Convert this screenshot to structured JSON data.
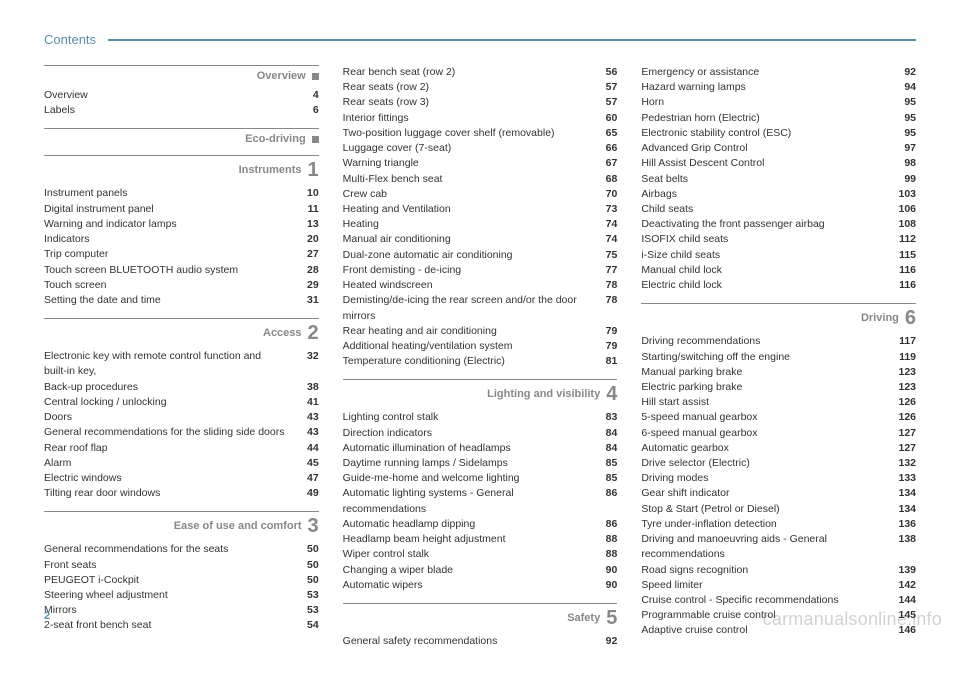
{
  "header": {
    "title": "Contents",
    "page_number": "2",
    "watermark": "carmanualsonline.info"
  },
  "colors": {
    "accent": "#5a8fa8",
    "muted": "#888888",
    "text": "#333333",
    "bg": "#ffffff"
  },
  "columns": [
    {
      "sections": [
        {
          "title": "Overview",
          "marker": "square",
          "entries": [
            {
              "label": "Overview",
              "page": "4"
            },
            {
              "label": "Labels",
              "page": "6"
            }
          ]
        },
        {
          "title": "Eco-driving",
          "marker": "square",
          "entries": []
        },
        {
          "title": "Instruments",
          "marker": "1",
          "entries": [
            {
              "label": "Instrument panels",
              "page": "10"
            },
            {
              "label": "Digital instrument panel",
              "page": "11"
            },
            {
              "label": "Warning and indicator lamps",
              "page": "13"
            },
            {
              "label": "Indicators",
              "page": "20"
            },
            {
              "label": "Trip computer",
              "page": "27"
            },
            {
              "label": "Touch screen BLUETOOTH audio system",
              "page": "28"
            },
            {
              "label": "Touch screen",
              "page": "29"
            },
            {
              "label": "Setting the date and time",
              "page": "31"
            }
          ]
        },
        {
          "title": "Access",
          "marker": "2",
          "entries": [
            {
              "label": "Electronic key with remote control function and built-in key,",
              "page": "32"
            },
            {
              "label": "Back-up procedures",
              "page": "38"
            },
            {
              "label": "Central locking / unlocking",
              "page": "41"
            },
            {
              "label": "Doors",
              "page": "43"
            },
            {
              "label": "General recommendations for the sliding side doors",
              "page": "43"
            },
            {
              "label": "Rear roof flap",
              "page": "44"
            },
            {
              "label": "Alarm",
              "page": "45"
            },
            {
              "label": "Electric windows",
              "page": "47"
            },
            {
              "label": "Tilting rear door windows",
              "page": "49"
            }
          ]
        },
        {
          "title": "Ease of use and comfort",
          "marker": "3",
          "entries": [
            {
              "label": "General recommendations for the seats",
              "page": "50"
            },
            {
              "label": "Front seats",
              "page": "50"
            },
            {
              "label": "PEUGEOT i-Cockpit",
              "page": "50"
            },
            {
              "label": "Steering wheel adjustment",
              "page": "53"
            },
            {
              "label": "Mirrors",
              "page": "53"
            },
            {
              "label": "2-seat front bench seat",
              "page": "54"
            }
          ]
        }
      ]
    },
    {
      "sections": [
        {
          "title": "",
          "marker": "",
          "notop": true,
          "entries": [
            {
              "label": "Rear bench seat (row 2)",
              "page": "56"
            },
            {
              "label": "Rear seats (row 2)",
              "page": "57"
            },
            {
              "label": "Rear seats (row 3)",
              "page": "57"
            },
            {
              "label": "Interior fittings",
              "page": "60"
            },
            {
              "label": "Two-position luggage cover shelf (removable)",
              "page": "65"
            },
            {
              "label": "Luggage cover (7-seat)",
              "page": "66"
            },
            {
              "label": "Warning triangle",
              "page": "67"
            },
            {
              "label": "Multi-Flex bench seat",
              "page": "68"
            },
            {
              "label": "Crew cab",
              "page": "70"
            },
            {
              "label": "Heating and Ventilation",
              "page": "73"
            },
            {
              "label": "Heating",
              "page": "74"
            },
            {
              "label": "Manual air conditioning",
              "page": "74"
            },
            {
              "label": "Dual-zone automatic air conditioning",
              "page": "75"
            },
            {
              "label": "Front demisting - de-icing",
              "page": "77"
            },
            {
              "label": "Heated windscreen",
              "page": "78"
            },
            {
              "label": "Demisting/de-icing the rear screen and/or the door mirrors",
              "page": "78"
            },
            {
              "label": "Rear heating and air conditioning",
              "page": "79"
            },
            {
              "label": "Additional heating/ventilation system",
              "page": "79"
            },
            {
              "label": "Temperature conditioning (Electric)",
              "page": "81"
            }
          ]
        },
        {
          "title": "Lighting and visibility",
          "marker": "4",
          "entries": [
            {
              "label": "Lighting control stalk",
              "page": "83"
            },
            {
              "label": "Direction indicators",
              "page": "84"
            },
            {
              "label": "Automatic illumination of headlamps",
              "page": "84"
            },
            {
              "label": "Daytime running lamps / Sidelamps",
              "page": "85"
            },
            {
              "label": "Guide-me-home and welcome lighting",
              "page": "85"
            },
            {
              "label": "Automatic lighting systems - General recommendations",
              "page": "86"
            },
            {
              "label": "Automatic headlamp dipping",
              "page": "86"
            },
            {
              "label": "Headlamp beam height adjustment",
              "page": "88"
            },
            {
              "label": "Wiper control stalk",
              "page": "88"
            },
            {
              "label": "Changing a wiper blade",
              "page": "90"
            },
            {
              "label": "Automatic wipers",
              "page": "90"
            }
          ]
        },
        {
          "title": "Safety",
          "marker": "5",
          "entries": [
            {
              "label": "General safety recommendations",
              "page": "92"
            }
          ]
        }
      ]
    },
    {
      "sections": [
        {
          "title": "",
          "marker": "",
          "notop": true,
          "entries": [
            {
              "label": "Emergency or assistance",
              "page": "92"
            },
            {
              "label": "Hazard warning lamps",
              "page": "94"
            },
            {
              "label": "Horn",
              "page": "95"
            },
            {
              "label": "Pedestrian horn (Electric)",
              "page": "95"
            },
            {
              "label": "Electronic stability control (ESC)",
              "page": "95"
            },
            {
              "label": "Advanced Grip Control",
              "page": "97"
            },
            {
              "label": "Hill Assist Descent Control",
              "page": "98"
            },
            {
              "label": "Seat belts",
              "page": "99"
            },
            {
              "label": "Airbags",
              "page": "103"
            },
            {
              "label": "Child seats",
              "page": "106"
            },
            {
              "label": "Deactivating the front passenger airbag",
              "page": "108"
            },
            {
              "label": "ISOFIX child seats",
              "page": "112"
            },
            {
              "label": "i-Size child seats",
              "page": "115"
            },
            {
              "label": "Manual child lock",
              "page": "116"
            },
            {
              "label": "Electric child lock",
              "page": "116"
            }
          ]
        },
        {
          "title": "Driving",
          "marker": "6",
          "entries": [
            {
              "label": "Driving recommendations",
              "page": "117"
            },
            {
              "label": "Starting/switching off the engine",
              "page": "119"
            },
            {
              "label": "Manual parking brake",
              "page": "123"
            },
            {
              "label": "Electric parking brake",
              "page": "123"
            },
            {
              "label": "Hill start assist",
              "page": "126"
            },
            {
              "label": "5-speed manual gearbox",
              "page": "126"
            },
            {
              "label": "6-speed manual gearbox",
              "page": "127"
            },
            {
              "label": "Automatic gearbox",
              "page": "127"
            },
            {
              "label": "Drive selector (Electric)",
              "page": "132"
            },
            {
              "label": "Driving modes",
              "page": "133"
            },
            {
              "label": "Gear shift indicator",
              "page": "134"
            },
            {
              "label": "Stop & Start (Petrol or Diesel)",
              "page": "134"
            },
            {
              "label": "Tyre under-inflation detection",
              "page": "136"
            },
            {
              "label": "Driving and manoeuvring aids - General recommendations",
              "page": "138"
            },
            {
              "label": "Road signs recognition",
              "page": "139"
            },
            {
              "label": "Speed limiter",
              "page": "142"
            },
            {
              "label": "Cruise control - Specific recommendations",
              "page": "144"
            },
            {
              "label": "Programmable cruise control",
              "page": "145"
            },
            {
              "label": "Adaptive cruise control",
              "page": "146"
            }
          ]
        }
      ]
    }
  ]
}
